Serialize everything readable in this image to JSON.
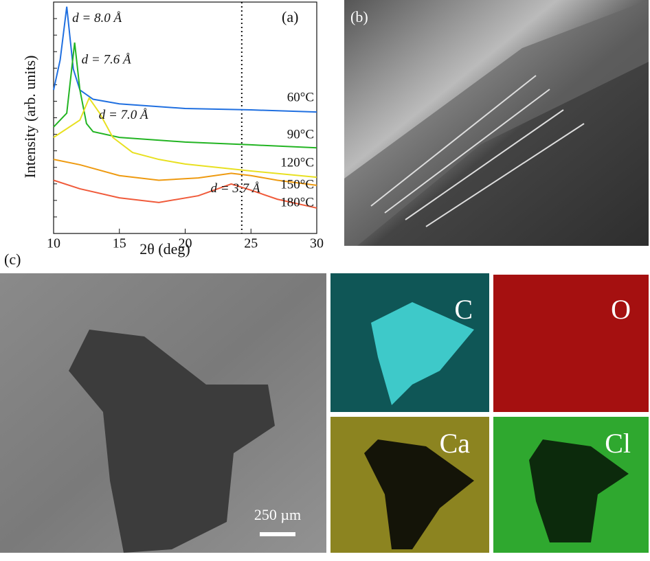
{
  "panels": {
    "a": "(a)",
    "b": "(b)",
    "c": "(c)"
  },
  "chart_data": {
    "type": "line",
    "xlabel": "2θ (deg)",
    "ylabel": "Intensity (arb. units)",
    "xlim": [
      10,
      30
    ],
    "xticks": [
      10,
      15,
      20,
      25,
      30
    ],
    "ylim": [
      0,
      100
    ],
    "vline": 24.3,
    "annotations": [
      {
        "text": "d = 8.0 Å",
        "x": 11.0,
        "y": 98
      },
      {
        "text": "d = 7.6 Å",
        "x": 11.6,
        "y": 82.5
      },
      {
        "text": "d = 7.0 Å",
        "x": 12.7,
        "y": 58.5
      },
      {
        "text": "d = 3.7 Å",
        "x": 23.5,
        "y": 21.4
      }
    ],
    "series": [
      {
        "name": "60°C",
        "color": "#1f6fe0",
        "x": [
          10,
          10.5,
          11.0,
          11.5,
          12,
          13,
          15,
          20,
          25,
          30
        ],
        "values": [
          62,
          75,
          98,
          71,
          62,
          58,
          56,
          54,
          53.4,
          52.5
        ]
      },
      {
        "name": "90°C",
        "color": "#22b422",
        "x": [
          10,
          11,
          11.6,
          12,
          12.5,
          13,
          15,
          20,
          25,
          30
        ],
        "values": [
          46,
          52,
          82.5,
          62,
          47.5,
          44,
          41.5,
          39.5,
          38.3,
          37
        ]
      },
      {
        "name": "120°C",
        "color": "#e8e020",
        "x": [
          10,
          12,
          12.7,
          13.5,
          14.5,
          16,
          18,
          20,
          25,
          30
        ],
        "values": [
          41.5,
          49,
          58.5,
          52,
          41.5,
          35,
          32,
          30,
          27,
          24.3
        ]
      },
      {
        "name": "150°C",
        "color": "#ee9a10",
        "x": [
          10,
          12,
          15,
          18,
          21,
          23.5,
          25,
          27,
          30
        ],
        "values": [
          32,
          29.7,
          25,
          23,
          24,
          26,
          25,
          23,
          20.8
        ]
      },
      {
        "name": "180°C",
        "color": "#f05a3a",
        "x": [
          10,
          12,
          15,
          18,
          21,
          23.5,
          25,
          27,
          30
        ],
        "values": [
          23,
          19.3,
          15.4,
          13.4,
          16.3,
          21.4,
          18.7,
          14.8,
          11
        ]
      }
    ]
  },
  "eds": [
    "C",
    "O",
    "Ca",
    "Cl"
  ],
  "scale_bar": "250 µm"
}
